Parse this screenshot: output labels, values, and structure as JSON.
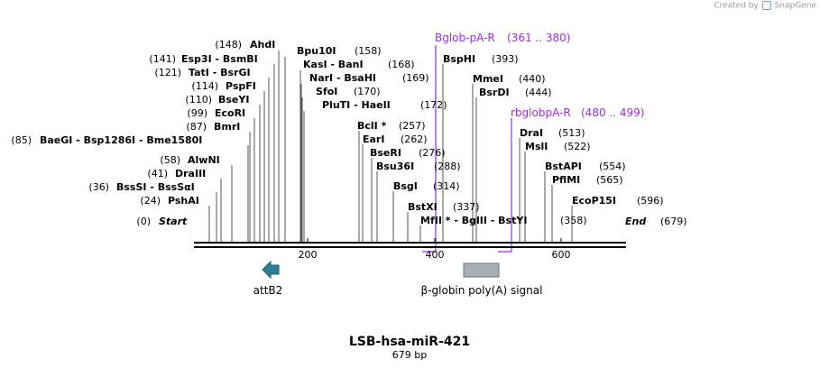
{
  "credit": {
    "prefix": "Created by",
    "brand": "SnapGene"
  },
  "map": {
    "name": "LSB-hsa-miR-421",
    "length_label": "679 bp",
    "length": 679,
    "ruler_ticks": [
      "200",
      "400",
      "600"
    ],
    "start_label": "Start",
    "start_pos": "(0)",
    "end_label": "End",
    "end_pos": "(679)"
  },
  "sites": [
    {
      "pos": "(148)",
      "name": "AhdI"
    },
    {
      "pos": "(141)",
      "name": "Esp3I  - BsmBI"
    },
    {
      "pos": "(121)",
      "name": "TatI  - BsrGI"
    },
    {
      "pos": "(114)",
      "name": "PspFI"
    },
    {
      "pos": "(110)",
      "name": "BseYI"
    },
    {
      "pos": "(99)",
      "name": "EcoRI"
    },
    {
      "pos": "(87)",
      "name": "BmrI"
    },
    {
      "pos": "(85)",
      "name": "BaeGI  - Bsp1286I  - Bme1580I"
    },
    {
      "pos": "(58)",
      "name": "AlwNI"
    },
    {
      "pos": "(41)",
      "name": "DraIII"
    },
    {
      "pos": "(36)",
      "name": "BssSI  - BssSαI"
    },
    {
      "pos": "(24)",
      "name": "PshAI"
    },
    {
      "pos": "(158)",
      "name": "Bpu10I"
    },
    {
      "pos": "(168)",
      "name": "KasI  - BanI"
    },
    {
      "pos": "(169)",
      "name": "NarI  - BsaHI"
    },
    {
      "pos": "(170)",
      "name": "SfoI"
    },
    {
      "pos": "(172)",
      "name": "PluTI  - HaeII"
    },
    {
      "pos": "(257)",
      "name": "BclI *"
    },
    {
      "pos": "(262)",
      "name": "EarI"
    },
    {
      "pos": "(276)",
      "name": "BseRI"
    },
    {
      "pos": "(288)",
      "name": "Bsu36I"
    },
    {
      "pos": "(314)",
      "name": "BsgI"
    },
    {
      "pos": "(337)",
      "name": "BstXI"
    },
    {
      "pos": "(358)",
      "name": "MfII *  - BglII  - BstYI"
    },
    {
      "pos": "(393)",
      "name": "BspHI"
    },
    {
      "pos": "(440)",
      "name": "MmeI"
    },
    {
      "pos": "(444)",
      "name": "BsrDI"
    },
    {
      "pos": "(513)",
      "name": "DraI"
    },
    {
      "pos": "(522)",
      "name": "MslI"
    },
    {
      "pos": "(554)",
      "name": "BstAPI"
    },
    {
      "pos": "(565)",
      "name": "PflMI"
    },
    {
      "pos": "(596)",
      "name": "EcoP15I"
    }
  ],
  "primers": [
    {
      "name": "Bglob-pA-R",
      "range": "(361 .. 380)",
      "color": "#9b30d9"
    },
    {
      "name": "rbglobpA-R",
      "range": "(480 .. 499)",
      "color": "#9b30d9"
    }
  ],
  "features": [
    {
      "name": "attB2",
      "color": "#2e7f93",
      "shape": "arrow-left"
    },
    {
      "name": "β-globin poly(A) signal",
      "color": "#a9adb5",
      "shape": "box"
    }
  ]
}
